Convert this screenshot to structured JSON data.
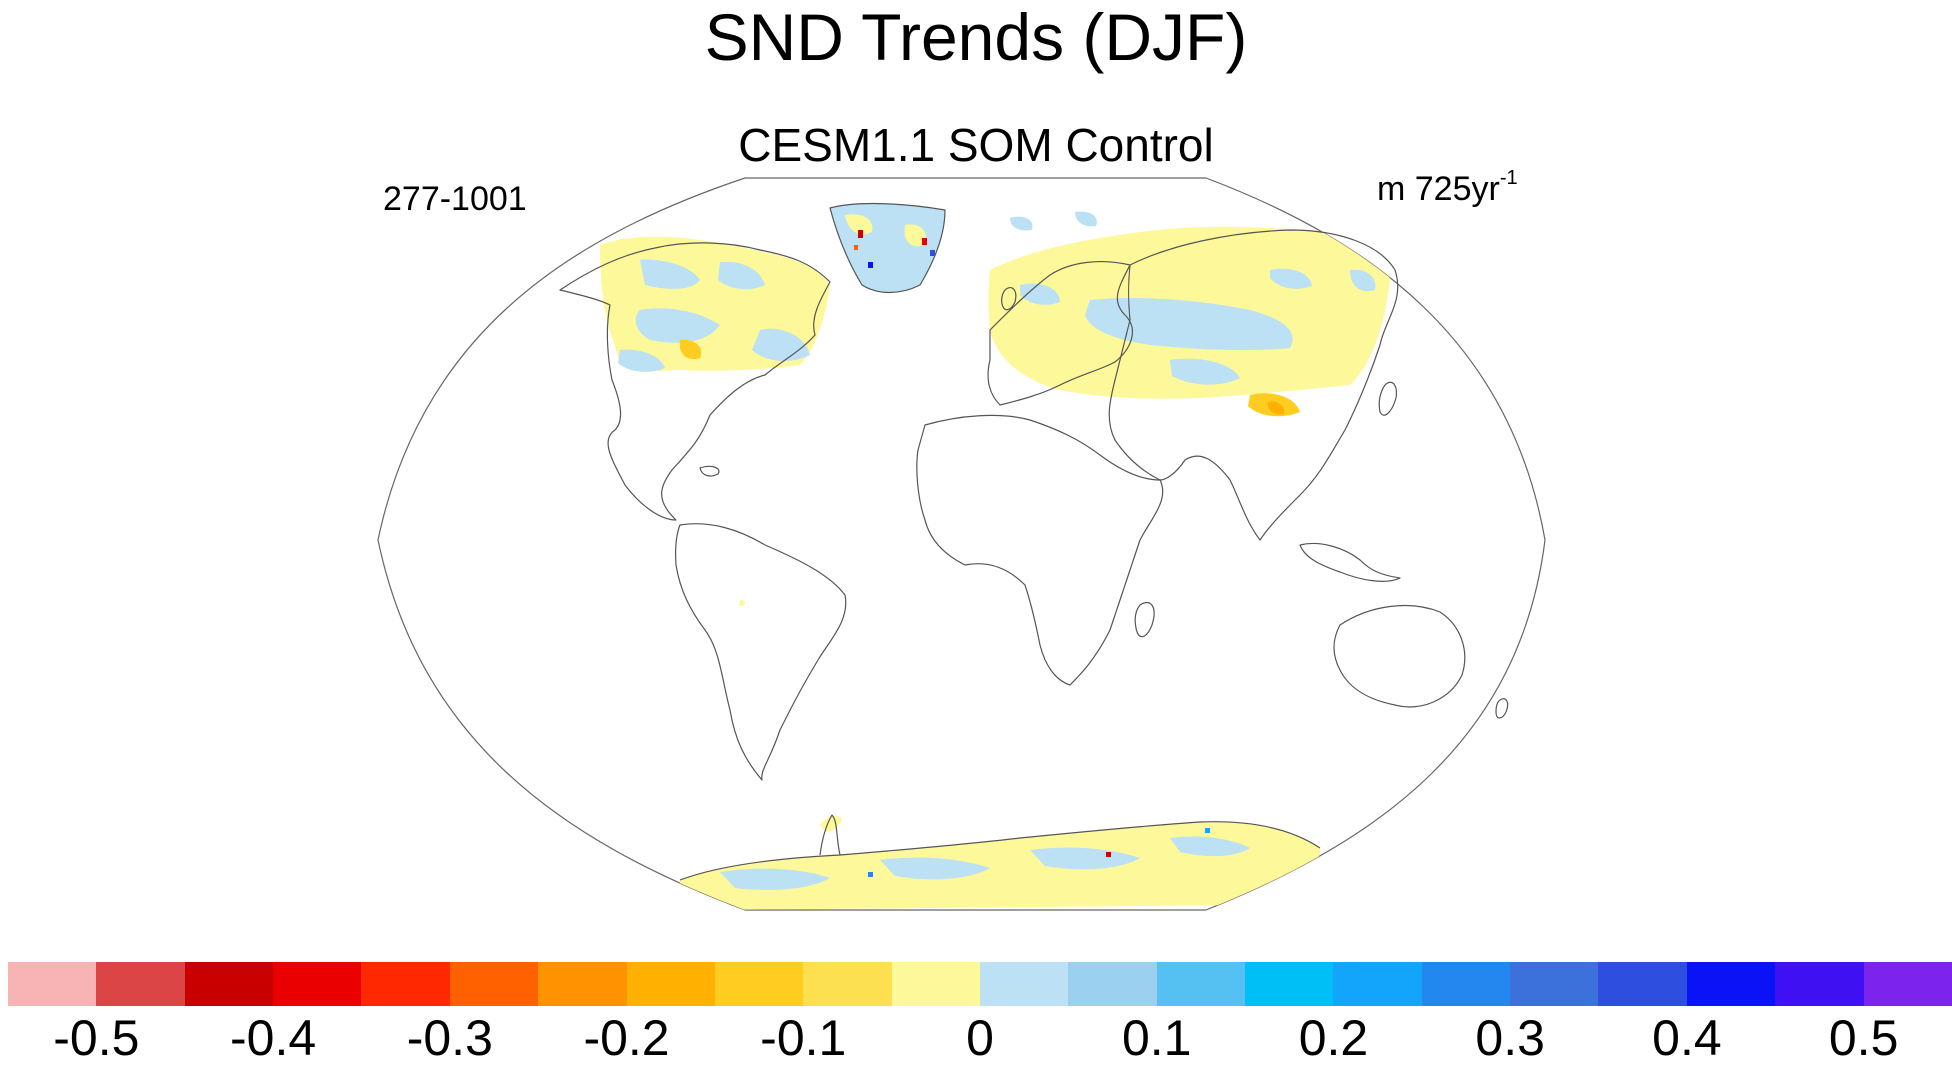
{
  "title": "SND Trends (DJF)",
  "subtitle": "CESM1.1 SOM Control",
  "left_string": "277-1001",
  "right_string": {
    "text": "m 725yr",
    "superscript": "-1"
  },
  "colorbar": {
    "colors": [
      "#f8b4b4",
      "#dc4545",
      "#c80000",
      "#ea0000",
      "#ff2800",
      "#ff6000",
      "#ff9200",
      "#ffb000",
      "#ffcc20",
      "#fce050",
      "#fdf89a",
      "#bce0f4",
      "#9bd0f0",
      "#55c1f2",
      "#00bff7",
      "#13a5fb",
      "#2387f0",
      "#3c71dc",
      "#2e4ee0",
      "#0a13f5",
      "#3e10f2",
      "#7d24ec"
    ],
    "labels": [
      "-0.5",
      "-0.4",
      "-0.3",
      "-0.2",
      "-0.1",
      "0",
      "0.1",
      "0.2",
      "0.3",
      "0.4",
      "0.5"
    ]
  },
  "map_colors": {
    "background": "#ffffff",
    "coastline": "#555555",
    "border": "#666666",
    "light_yellow": "#fdf89a",
    "light_blue": "#bce0f4",
    "orange": "#ffb000"
  }
}
